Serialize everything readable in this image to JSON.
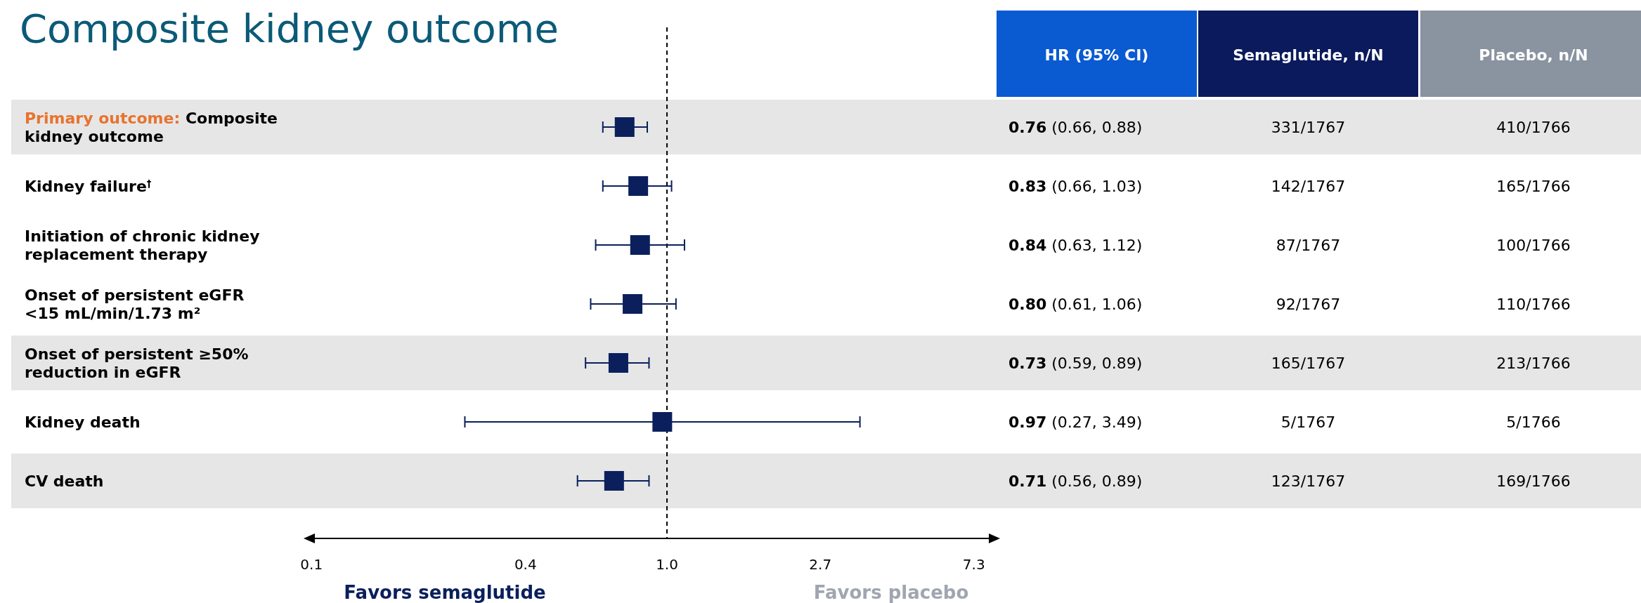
{
  "chart_data": {
    "type": "scatter",
    "orientation": "horizontal",
    "title": "Composite kidney outcome",
    "categories": [
      "Primary outcome: Composite\nkidney outcome",
      "Kidney failure$^{†}$",
      "Initiation of chronic kidney\nreplacement therapy",
      "Onset of persistent eGFR\n<15 mL/min/1.73 m²",
      "Onset of persistent ≥50%\nreduction in eGFR",
      "Kidney death",
      "CV death"
    ],
    "series": [
      {
        "color": "#0a1f5c",
        "values": [
          0.76,
          0.83,
          0.84,
          0.8,
          0.73,
          0.97,
          0.71
        ],
        "errors": [
          [
            0.66,
            0.88
          ],
          [
            0.66,
            1.03
          ],
          [
            0.63,
            1.12
          ],
          [
            0.61,
            1.06
          ],
          [
            0.59,
            0.89
          ],
          [
            0.27,
            3.49
          ],
          [
            0.56,
            0.89
          ]
        ],
        "value_labels": [
          "0.76 (0.66, 0.88)",
          "0.83 (0.66, 1.03)",
          "0.84 (0.63, 1.12)",
          "0.80 (0.61, 1.06)",
          "0.73 (0.59, 0.89)",
          "0.97 (0.27, 3.49)",
          "0.71 (0.56, 0.89)"
        ]
      }
    ],
    "marker": "square",
    "log": "x",
    "xlim": [
      0.095,
      8.65
    ],
    "xticks": [
      0.1,
      0.4,
      {
        "value": 1,
        "label": "1.0"
      },
      2.7,
      7.3
    ],
    "ref_lines": [
      {
        "axis": "x",
        "value": 1,
        "line_style": "dashed",
        "color": "#000000"
      }
    ],
    "bands": [
      {
        "axis": "y",
        "from": "Primary outcome: Composite\nkidney outcome",
        "to": "Primary outcome: Composite\nkidney outcome",
        "color": "#e6e6e6"
      },
      {
        "axis": "y",
        "from": "Onset of persistent ≥50%\nreduction in eGFR",
        "to": "Onset of persistent ≥50%\nreduction in eGFR",
        "color": "#e6e6e6"
      },
      {
        "axis": "y",
        "from": "CV death",
        "to": "CV death",
        "color": "#e6e6e6"
      }
    ],
    "annotations": [
      "Favors semaglutide",
      "Favors placebo",
      "HR (95% CI)",
      "Semaglutide, n/N",
      "Placebo, n/N",
      "331/1767",
      "410/1766",
      "142/1767",
      "165/1766",
      "87/1767",
      "100/1766",
      "92/1767",
      "110/1766",
      "165/1767",
      "213/1766",
      "5/1767",
      "5/1766",
      "123/1767",
      "169/1766"
    ]
  }
}
